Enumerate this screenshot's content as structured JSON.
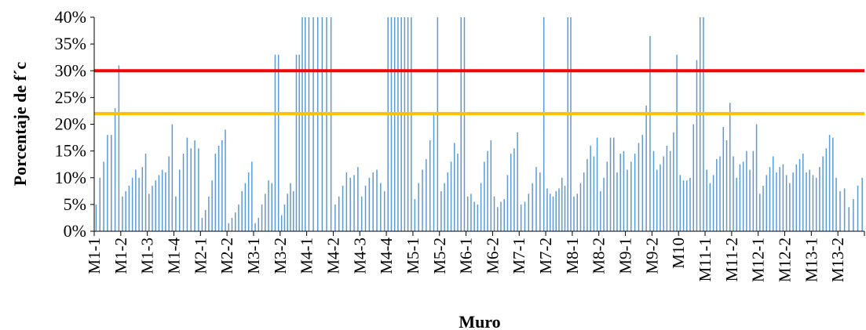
{
  "chart_data": {
    "type": "bar",
    "title": "",
    "xlabel": "Muro",
    "ylabel": "Porcentaje de f´c",
    "ylim": [
      0,
      40
    ],
    "ytick_values": [
      0,
      5,
      10,
      15,
      20,
      25,
      30,
      35,
      40
    ],
    "ytick_labels": [
      "0%",
      "5%",
      "10%",
      "15%",
      "20%",
      "25%",
      "30%",
      "35%",
      "40%"
    ],
    "grid": false,
    "bar_color": "#5b9bd5",
    "categories": [
      "M1-1",
      "M1-2",
      "M1-3",
      "M1-4",
      "M2-1",
      "M2-2",
      "M3-1",
      "M3-2",
      "M4-1",
      "M4-2",
      "M4-3",
      "M4-4",
      "M5-1",
      "M5-2",
      "M6-1",
      "M6-2",
      "M7-1",
      "M7-2",
      "M8-1",
      "M8-2",
      "M9-1",
      "M9-2",
      "M10",
      "M11-1",
      "M11-2",
      "M12-1",
      "M12-2",
      "M13-1",
      "M13-2"
    ],
    "groups": [
      [
        5,
        10,
        13,
        18,
        18,
        23,
        31
      ],
      [
        6.5,
        7.5,
        8.5,
        10,
        11.5,
        10,
        12,
        14.5
      ],
      [
        7,
        8.5,
        9.5,
        10.5,
        11.5,
        11,
        14,
        20
      ],
      [
        6.5,
        11.5,
        14.5,
        17.5,
        15.5,
        17,
        15.5
      ],
      [
        2.5,
        4,
        6.5,
        9.5,
        14.5,
        16,
        17,
        19
      ],
      [
        1.5,
        2.5,
        3.5,
        5,
        7.5,
        9,
        11,
        13
      ],
      [
        1.5,
        2.5,
        5,
        7,
        9.5,
        9,
        33,
        33
      ],
      [
        3,
        5,
        7,
        9,
        7.5,
        33,
        33,
        40,
        40
      ],
      [
        40,
        40,
        40,
        40,
        40,
        40
      ],
      [
        5,
        6.5,
        8.5,
        11,
        10,
        10.5,
        12
      ],
      [
        6.5,
        8.5,
        10,
        11,
        11.5,
        9,
        7.5
      ],
      [
        40,
        40,
        40,
        40,
        40,
        40,
        40,
        40
      ],
      [
        6,
        9,
        11.5,
        13.5,
        17,
        22,
        40
      ],
      [
        7.5,
        9,
        11,
        13,
        16.5,
        14.5,
        40,
        40
      ],
      [
        6.5,
        7,
        5.5,
        5,
        9,
        13,
        15,
        17
      ],
      [
        6.5,
        4.5,
        5.5,
        6,
        10.5,
        14.5,
        15.5,
        18.5
      ],
      [
        5,
        5.5,
        7,
        9,
        12,
        11,
        40
      ],
      [
        8,
        7,
        6.5,
        7.5,
        8,
        10,
        8.5,
        40,
        40
      ],
      [
        6.5,
        7,
        9,
        11,
        13.5,
        16,
        14,
        17.5
      ],
      [
        7.5,
        10,
        13,
        17.5,
        17.5,
        11,
        14.5,
        15
      ],
      [
        11.5,
        13,
        14.5,
        16.5,
        18,
        23.5,
        36.5
      ],
      [
        15,
        11.5,
        12.5,
        14,
        16,
        15,
        18.5,
        33
      ],
      [
        10.5,
        9.5,
        9.5,
        10,
        20,
        32,
        40,
        40
      ],
      [
        11.5,
        9,
        10.5,
        13.5,
        14,
        19.5,
        17,
        24
      ],
      [
        14,
        10,
        12.5,
        13,
        15,
        11.5,
        15,
        20
      ],
      [
        7,
        8.5,
        10.5,
        12,
        14,
        11,
        12,
        12.5
      ],
      [
        10.5,
        9,
        11,
        12.5,
        13.5,
        14.5,
        11,
        11.5
      ],
      [
        10.5,
        10,
        12,
        14,
        15.5,
        18,
        17.5,
        10
      ],
      [
        7.5,
        8,
        4.5,
        6,
        8.5,
        10
      ]
    ],
    "reference_lines": [
      {
        "value": 30,
        "color": "#ff0000"
      },
      {
        "value": 22,
        "color": "#ffc000"
      }
    ]
  }
}
